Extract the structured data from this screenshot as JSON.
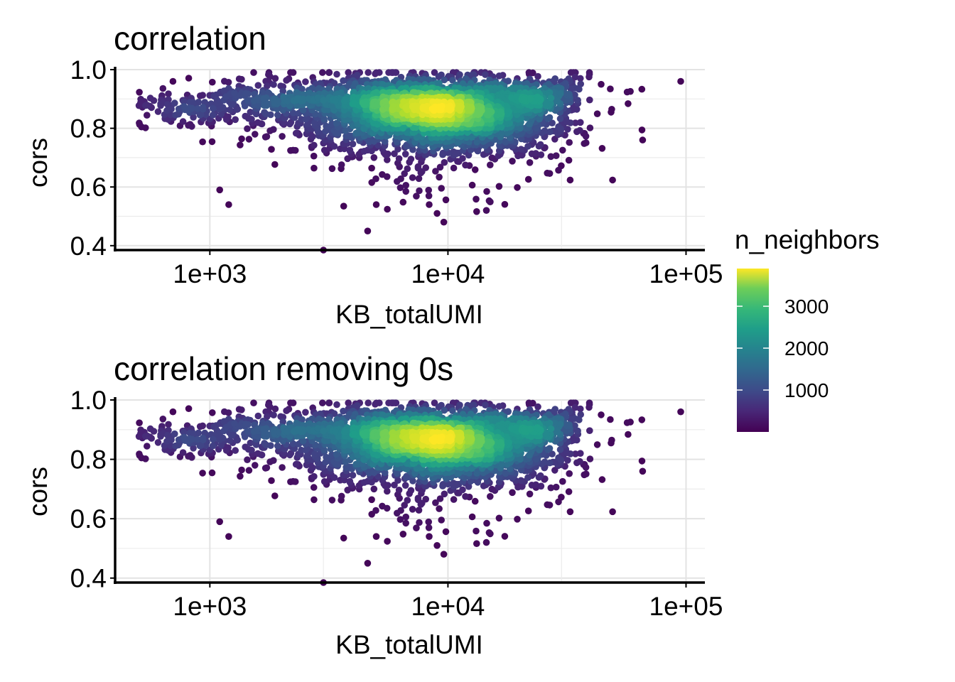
{
  "chart_data": [
    {
      "type": "scatter",
      "title": "correlation",
      "xlabel": "KB_totalUMI",
      "ylabel": "cors",
      "x_scale": "log10",
      "xlim": [
        400,
        120000
      ],
      "ylim": [
        0.385,
        1.0
      ],
      "x_ticks": [
        1000,
        10000,
        100000
      ],
      "x_tick_labels": [
        "1e+03",
        "1e+04",
        "1e+05"
      ],
      "y_ticks": [
        0.4,
        0.6,
        0.8,
        1.0
      ],
      "y_tick_labels": [
        "0.4",
        "0.6",
        "0.8",
        "1.0"
      ],
      "grid": true,
      "density_center": {
        "x": 8900,
        "y": 0.86
      },
      "outliers": [
        {
          "x": 1100,
          "y": 0.59
        },
        {
          "x": 1200,
          "y": 0.54
        },
        {
          "x": 3000,
          "y": 0.385
        },
        {
          "x": 4600,
          "y": 0.45
        },
        {
          "x": 5000,
          "y": 0.54
        },
        {
          "x": 9000,
          "y": 0.51
        },
        {
          "x": 14500,
          "y": 0.52
        },
        {
          "x": 95000,
          "y": 0.96
        },
        {
          "x": 44000,
          "y": 0.95
        },
        {
          "x": 36000,
          "y": 0.82
        },
        {
          "x": 36000,
          "y": 0.97
        },
        {
          "x": 700,
          "y": 0.96
        }
      ]
    },
    {
      "type": "scatter",
      "title": "correlation removing 0s",
      "xlabel": "KB_totalUMI",
      "ylabel": "cors",
      "x_scale": "log10",
      "xlim": [
        400,
        120000
      ],
      "ylim": [
        0.385,
        1.0
      ],
      "x_ticks": [
        1000,
        10000,
        100000
      ],
      "x_tick_labels": [
        "1e+03",
        "1e+04",
        "1e+05"
      ],
      "y_ticks": [
        0.4,
        0.6,
        0.8,
        1.0
      ],
      "y_tick_labels": [
        "0.4",
        "0.6",
        "0.8",
        "1.0"
      ],
      "grid": true,
      "density_center": {
        "x": 8900,
        "y": 0.86
      },
      "outliers": [
        {
          "x": 1100,
          "y": 0.59
        },
        {
          "x": 1200,
          "y": 0.54
        },
        {
          "x": 3000,
          "y": 0.385
        },
        {
          "x": 4600,
          "y": 0.45
        },
        {
          "x": 5000,
          "y": 0.54
        },
        {
          "x": 9000,
          "y": 0.51
        },
        {
          "x": 14500,
          "y": 0.52
        },
        {
          "x": 95000,
          "y": 0.96
        },
        {
          "x": 44000,
          "y": 0.95
        },
        {
          "x": 36000,
          "y": 0.82
        },
        {
          "x": 36000,
          "y": 0.97
        },
        {
          "x": 700,
          "y": 0.96
        }
      ]
    }
  ],
  "legend": {
    "title": "n_neighbors",
    "placement": "right",
    "range": [
      0,
      3900
    ],
    "ticks": [
      1000,
      2000,
      3000
    ],
    "tick_labels": [
      "1000",
      "2000",
      "3000"
    ],
    "colormap": "viridis"
  }
}
